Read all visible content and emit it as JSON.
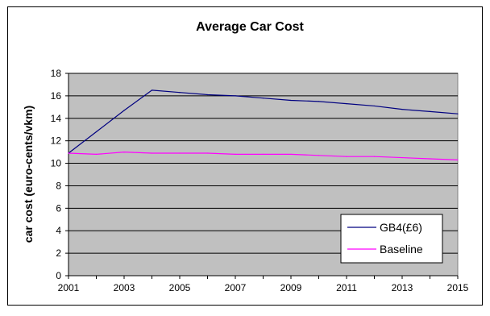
{
  "chart_data": {
    "type": "line",
    "title": "Average Car Cost",
    "xlabel": "",
    "ylabel": "car cost (euro-cents/vkm)",
    "x": [
      2001,
      2002,
      2003,
      2004,
      2005,
      2006,
      2007,
      2008,
      2009,
      2010,
      2011,
      2012,
      2013,
      2014,
      2015
    ],
    "x_ticks": [
      "2001",
      "2003",
      "2005",
      "2007",
      "2009",
      "2011",
      "2013",
      "2015"
    ],
    "y_ticks": [
      "0",
      "2",
      "4",
      "6",
      "8",
      "10",
      "12",
      "14",
      "16",
      "18"
    ],
    "xlim": [
      2001,
      2015
    ],
    "ylim": [
      0,
      18
    ],
    "grid": true,
    "legend_position": "bottom-right",
    "series": [
      {
        "name": "GB4(£6)",
        "color": "#000080",
        "values": [
          10.9,
          12.8,
          14.7,
          16.5,
          16.3,
          16.1,
          16.0,
          15.8,
          15.6,
          15.5,
          15.3,
          15.1,
          14.8,
          14.6,
          14.4
        ]
      },
      {
        "name": "Baseline",
        "color": "#ff00ff",
        "values": [
          10.9,
          10.8,
          11.0,
          10.9,
          10.9,
          10.9,
          10.8,
          10.8,
          10.8,
          10.7,
          10.6,
          10.6,
          10.5,
          10.4,
          10.3
        ]
      }
    ],
    "plot_background": "#c0c0c0"
  }
}
